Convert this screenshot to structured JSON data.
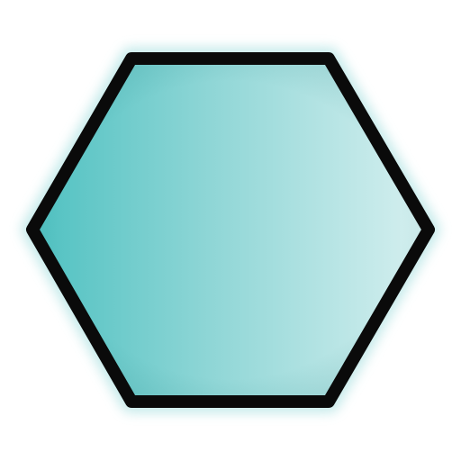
{
  "shape": {
    "kind": "hexagon",
    "icon_name": "hexagon-icon",
    "colors": {
      "fill_dark": "#4fc1c1",
      "fill_mid": "#8fd6d6",
      "fill_light": "#d7f0f0",
      "outline": "#0a0a0a",
      "glow": "#bfe8e8",
      "background": "#ffffff"
    }
  }
}
